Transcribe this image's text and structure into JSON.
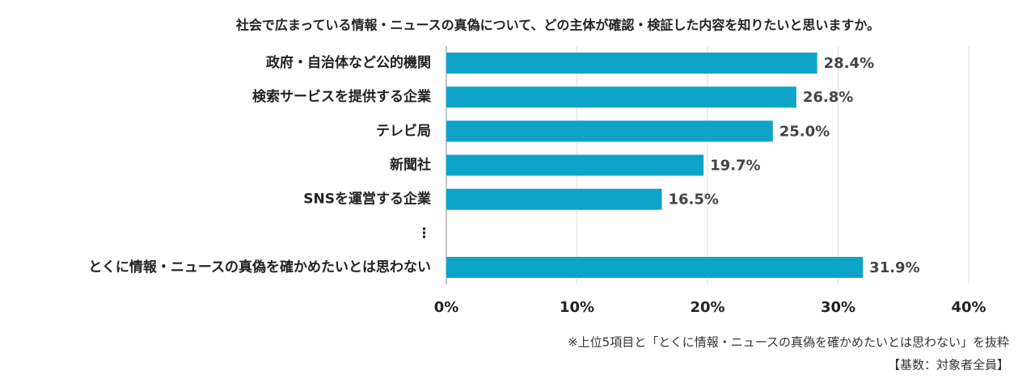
{
  "chart_data": {
    "type": "bar",
    "orientation": "horizontal",
    "title": "社会で広まっている情報・ニュースの真偽について、どの主体が確認・検証した内容を知りたいと思いますか。",
    "categories": [
      "政府・自治体など公的機関",
      "検索サービスを提供する企業",
      "テレビ局",
      "新聞社",
      "SNSを運営する企業",
      "⋮",
      "とくに情報・ニュースの真偽を確かめたいとは思わない"
    ],
    "values": [
      28.4,
      26.8,
      25.0,
      19.7,
      16.5,
      null,
      31.9
    ],
    "value_labels": [
      "28.4%",
      "26.8%",
      "25.0%",
      "19.7%",
      "16.5%",
      null,
      "31.9%"
    ],
    "color": "#0ea3c9",
    "xlim": [
      0,
      40
    ],
    "xticks": [
      {
        "value": 0,
        "label": "0%"
      },
      {
        "value": 10,
        "label": "10%"
      },
      {
        "value": 20,
        "label": "20%"
      },
      {
        "value": 30,
        "label": "30%"
      },
      {
        "value": 40,
        "label": "40%"
      }
    ],
    "grid": true,
    "notes": [
      "※上位5項目と「とくに情報・ニュースの真偽を確かめたいとは思わない」を抜粋",
      "【基数：対象者全員】"
    ]
  }
}
